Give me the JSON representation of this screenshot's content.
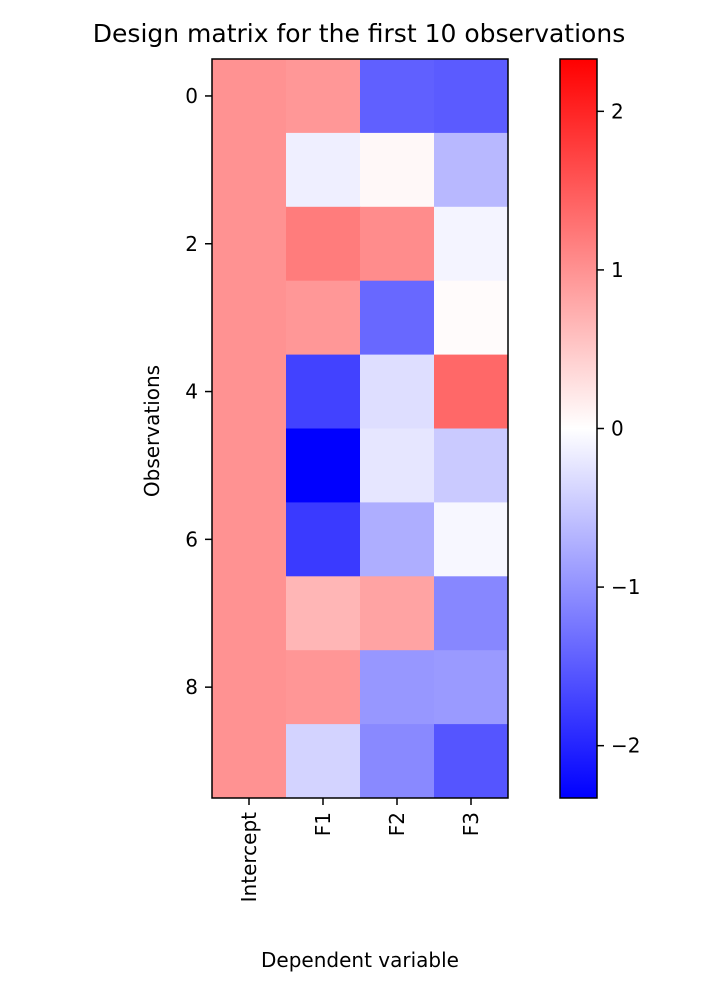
{
  "chart_data": {
    "type": "heatmap",
    "title": "Design matrix for the first 10 observations",
    "xlabel": "Dependent variable",
    "ylabel": "Observations",
    "columns": [
      "Intercept",
      "F1",
      "F2",
      "F3"
    ],
    "row_count": 10,
    "y_ticks": [
      0,
      2,
      4,
      6,
      8
    ],
    "colormap": "bwr",
    "vmin": -2.33,
    "vmax": 2.33,
    "colorbar_ticks": [
      -2,
      -1,
      0,
      1,
      2
    ],
    "colorbar_labels": [
      "−2",
      "−1",
      "0",
      "1",
      "2"
    ],
    "values": [
      [
        1,
        0.95,
        -1.45,
        -1.5
      ],
      [
        1,
        -0.15,
        0.06,
        -0.65
      ],
      [
        1,
        1.2,
        1.05,
        -0.1
      ],
      [
        1,
        0.95,
        -1.38,
        0.04
      ],
      [
        1,
        -1.73,
        -0.3,
        1.38
      ],
      [
        1,
        -2.33,
        -0.23,
        -0.48
      ],
      [
        1,
        -1.8,
        -0.74,
        -0.07
      ],
      [
        1,
        0.67,
        0.84,
        -1.1
      ],
      [
        1,
        0.96,
        -0.95,
        -0.92
      ],
      [
        1,
        -0.4,
        -1.08,
        -1.55
      ]
    ]
  }
}
